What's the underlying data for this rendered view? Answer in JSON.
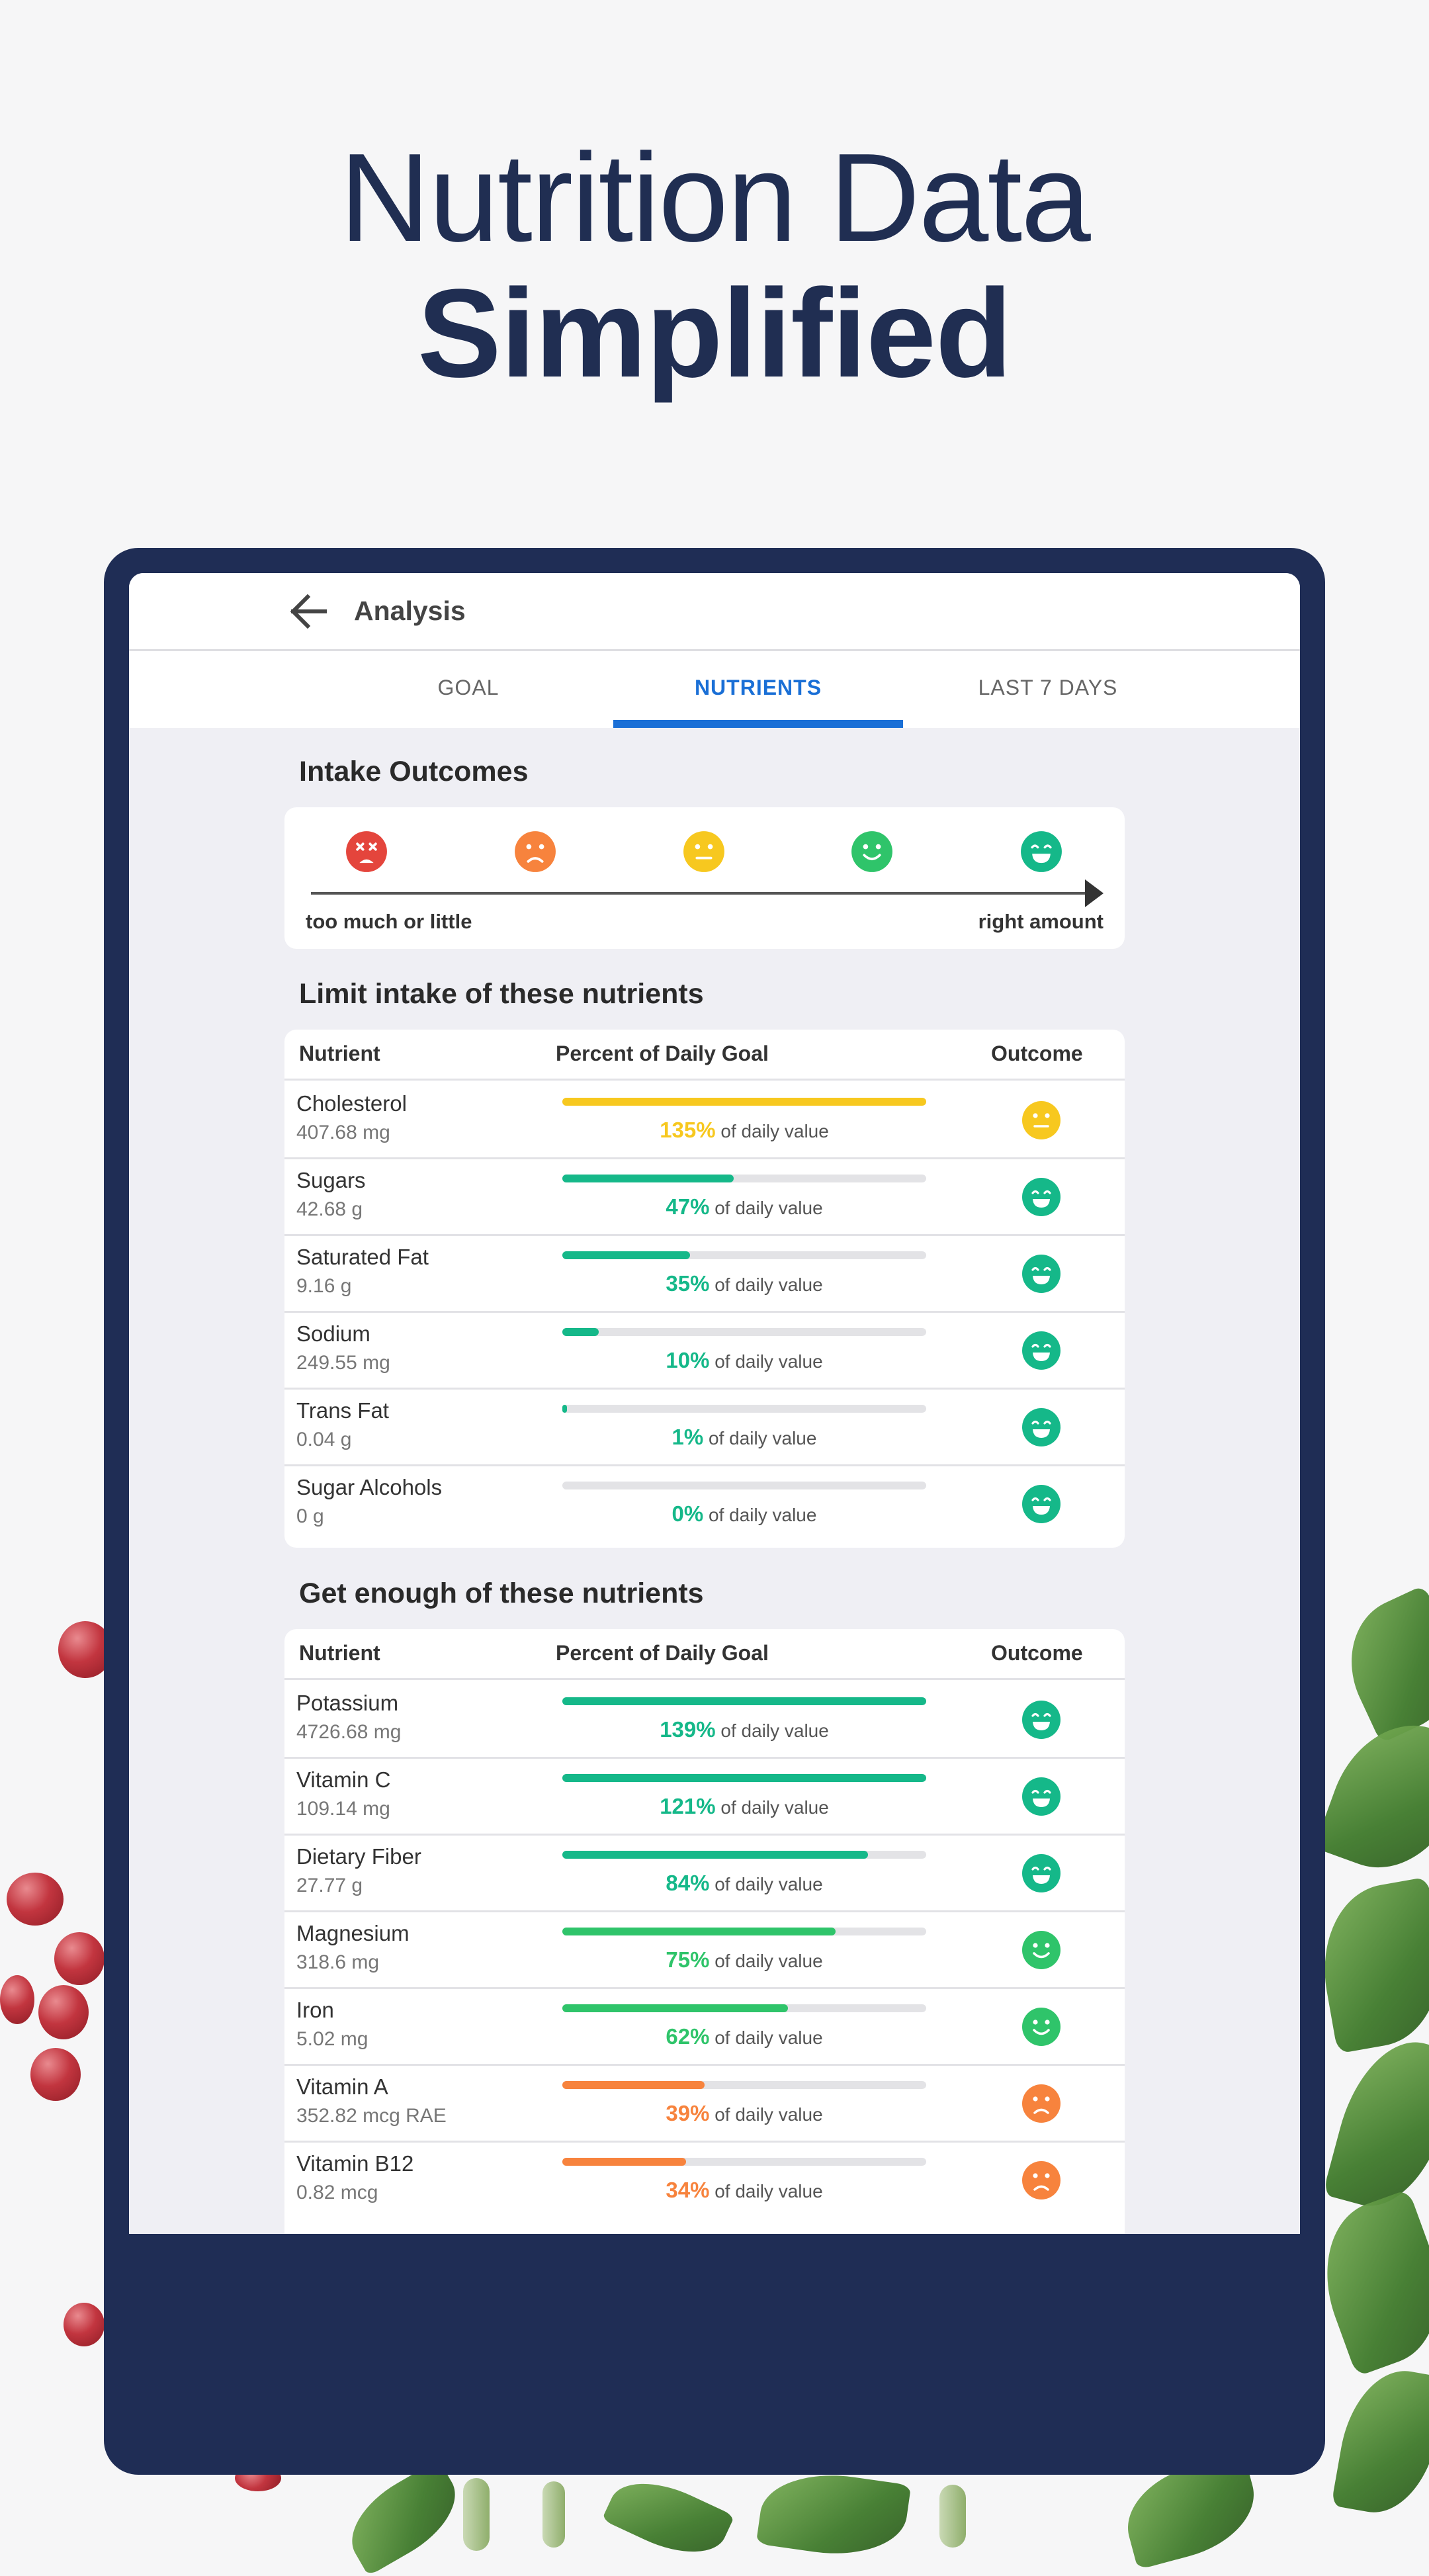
{
  "headline": {
    "line1": "Nutrition Data",
    "line2": "Simplified"
  },
  "colors": {
    "navy": "#1f2d55",
    "teal": "#15b889",
    "green": "#2fc46a",
    "yellow": "#f7c81f",
    "orange": "#f7833d",
    "red": "#e4453c",
    "accent": "#1a6fd6"
  },
  "appbar": {
    "title": "Analysis",
    "back_icon": "arrow-left-icon"
  },
  "tabs": [
    {
      "label": "GOAL",
      "active": false
    },
    {
      "label": "NUTRIENTS",
      "active": true
    },
    {
      "label": "LAST 7 DAYS",
      "active": false
    }
  ],
  "outcomes": {
    "title": "Intake Outcomes",
    "left_label": "too much or little",
    "right_label": "right amount",
    "faces": [
      {
        "icon": "dizzy-face-icon",
        "color": "#e4453c",
        "mood": "dizzy"
      },
      {
        "icon": "frown-face-icon",
        "color": "#f7833d",
        "mood": "frown"
      },
      {
        "icon": "neutral-face-icon",
        "color": "#f7c81f",
        "mood": "meh"
      },
      {
        "icon": "smile-face-icon",
        "color": "#2fc46a",
        "mood": "smile"
      },
      {
        "icon": "grin-face-icon",
        "color": "#15b889",
        "mood": "grin"
      }
    ]
  },
  "limit": {
    "title": "Limit intake of these nutrients",
    "headers": {
      "nutrient": "Nutrient",
      "percent": "Percent of Daily Goal",
      "outcome": "Outcome"
    },
    "rows": [
      {
        "name": "Cholesterol",
        "amount": "407.68 mg",
        "pct_label": "135%",
        "pct": 135,
        "color": "#f7c81f",
        "mood": "meh"
      },
      {
        "name": "Sugars",
        "amount": "42.68 g",
        "pct_label": "47%",
        "pct": 47,
        "color": "#15b889",
        "mood": "grin"
      },
      {
        "name": "Saturated Fat",
        "amount": "9.16 g",
        "pct_label": "35%",
        "pct": 35,
        "color": "#15b889",
        "mood": "grin"
      },
      {
        "name": "Sodium",
        "amount": "249.55 mg",
        "pct_label": "10%",
        "pct": 10,
        "color": "#15b889",
        "mood": "grin"
      },
      {
        "name": "Trans Fat",
        "amount": "0.04 g",
        "pct_label": "1%",
        "pct": 1,
        "color": "#15b889",
        "mood": "grin"
      },
      {
        "name": "Sugar Alcohols",
        "amount": "0 g",
        "pct_label": "0%",
        "pct": 0,
        "color": "#15b889",
        "mood": "grin"
      }
    ]
  },
  "enough": {
    "title": "Get enough of these nutrients",
    "headers": {
      "nutrient": "Nutrient",
      "percent": "Percent of Daily Goal",
      "outcome": "Outcome"
    },
    "rows": [
      {
        "name": "Potassium",
        "amount": "4726.68 mg",
        "pct_label": "139%",
        "pct": 139,
        "color": "#15b889",
        "mood": "grin"
      },
      {
        "name": "Vitamin C",
        "amount": "109.14 mg",
        "pct_label": "121%",
        "pct": 121,
        "color": "#15b889",
        "mood": "grin"
      },
      {
        "name": "Dietary Fiber",
        "amount": "27.77 g",
        "pct_label": "84%",
        "pct": 84,
        "color": "#15b889",
        "mood": "grin"
      },
      {
        "name": "Magnesium",
        "amount": "318.6 mg",
        "pct_label": "75%",
        "pct": 75,
        "color": "#2fc46a",
        "mood": "smile"
      },
      {
        "name": "Iron",
        "amount": "5.02 mg",
        "pct_label": "62%",
        "pct": 62,
        "color": "#2fc46a",
        "mood": "smile"
      },
      {
        "name": "Vitamin A",
        "amount": "352.82 mcg RAE",
        "pct_label": "39%",
        "pct": 39,
        "color": "#f7833d",
        "mood": "frown"
      },
      {
        "name": "Vitamin B12",
        "amount": "0.82 mcg",
        "pct_label": "34%",
        "pct": 34,
        "color": "#f7833d",
        "mood": "frown"
      }
    ]
  },
  "pct_suffix": "of daily value"
}
